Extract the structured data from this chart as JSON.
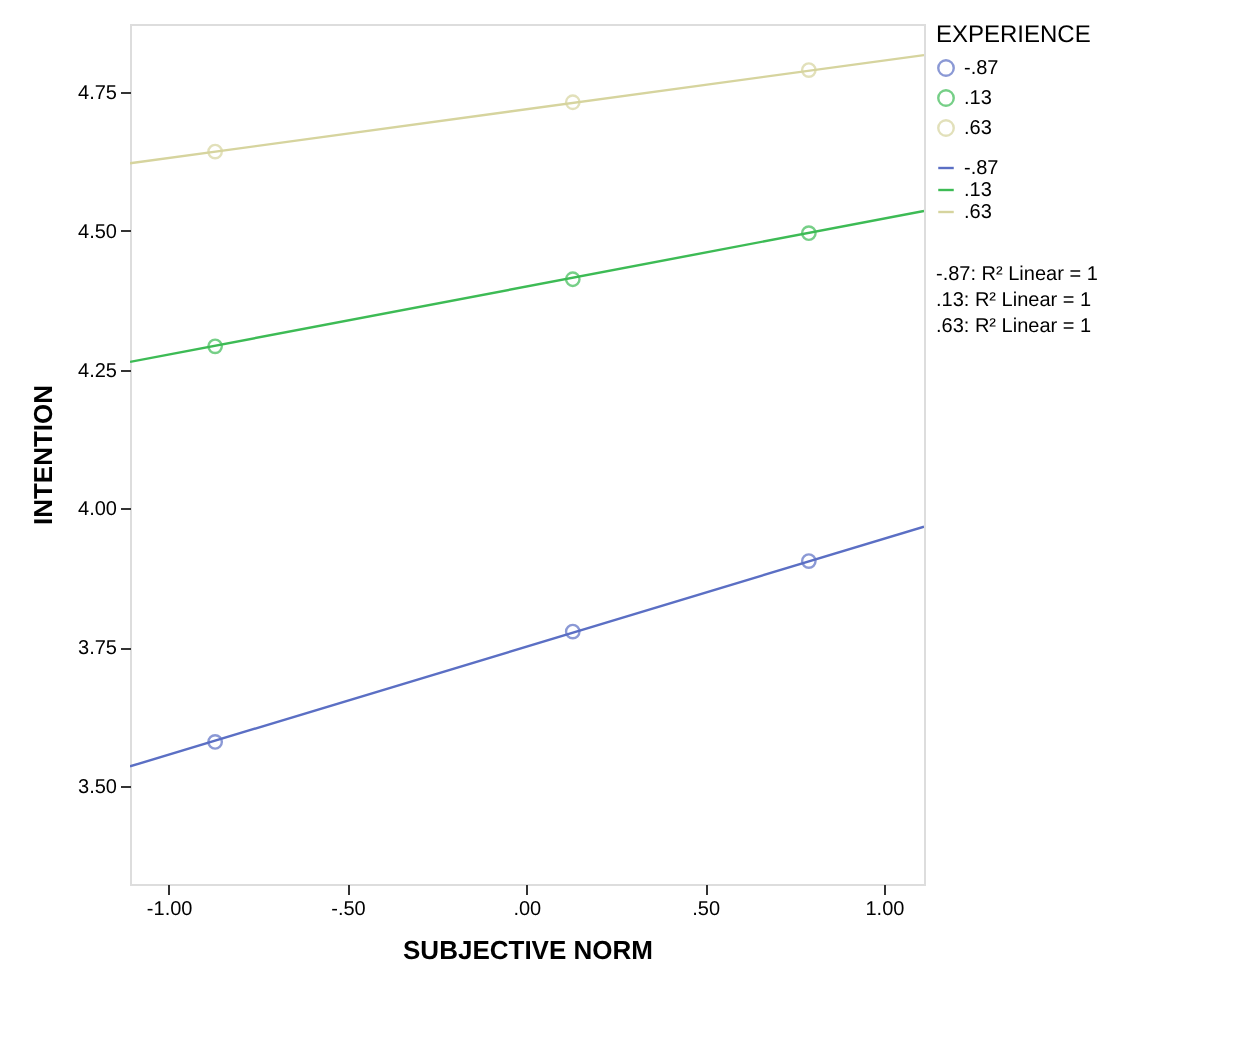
{
  "chart_data": {
    "type": "scatter",
    "xlabel": "SUBJECTIVE NORM",
    "ylabel": "INTENTION",
    "legend_title": "EXPERIENCE",
    "legend": "top right",
    "grid": false,
    "marker": "circle",
    "xlim": [
      -1.108,
      1.112
    ],
    "ylim": [
      3.323,
      4.873
    ],
    "xticks": [
      {
        "value": -1,
        "label": "-1.00"
      },
      {
        "value": -0.5,
        "label": "-.50"
      },
      {
        "value": 0,
        "label": ".00"
      },
      {
        "value": 0.5,
        "label": ".50"
      },
      {
        "value": 1,
        "label": "1.00"
      }
    ],
    "yticks": [
      {
        "value": 3.5,
        "label": "3.50"
      },
      {
        "value": 3.75,
        "label": "3.75"
      },
      {
        "value": 4.0,
        "label": "4.00"
      },
      {
        "value": 4.25,
        "label": "4.25"
      },
      {
        "value": 4.5,
        "label": "4.50"
      },
      {
        "value": 4.75,
        "label": "4.75"
      }
    ],
    "series": [
      {
        "name": "-.87",
        "color": "#5b6fc4",
        "x": [
          -0.87,
          0.13,
          0.79
        ],
        "values": [
          3.579,
          3.778,
          3.905
        ]
      },
      {
        "name": ".13",
        "color": "#3dbb55",
        "x": [
          -0.87,
          0.13,
          0.79
        ],
        "values": [
          4.292,
          4.413,
          4.496
        ]
      },
      {
        "name": ".63",
        "color": "#d6d49e",
        "x": [
          -0.87,
          0.13,
          0.79
        ],
        "values": [
          4.643,
          4.732,
          4.79
        ]
      },
      {
        "name": "-.87",
        "type": "line",
        "marker": "none",
        "line_style": "solid",
        "color": "#5b6fc4",
        "x": [
          -1.108,
          1.112
        ],
        "values": [
          3.535,
          3.967
        ]
      },
      {
        "name": ".13",
        "type": "line",
        "marker": "none",
        "line_style": "solid",
        "color": "#3dbb55",
        "x": [
          -1.108,
          1.112
        ],
        "values": [
          4.264,
          4.536
        ]
      },
      {
        "name": ".63",
        "type": "line",
        "marker": "none",
        "line_style": "solid",
        "color": "#d6d49e",
        "x": [
          -1.108,
          1.112
        ],
        "values": [
          4.622,
          4.817
        ]
      }
    ],
    "annotations": [
      "-.87: R² Linear = 1",
      ".13: R² Linear = 1",
      ".63: R² Linear = 1"
    ]
  }
}
